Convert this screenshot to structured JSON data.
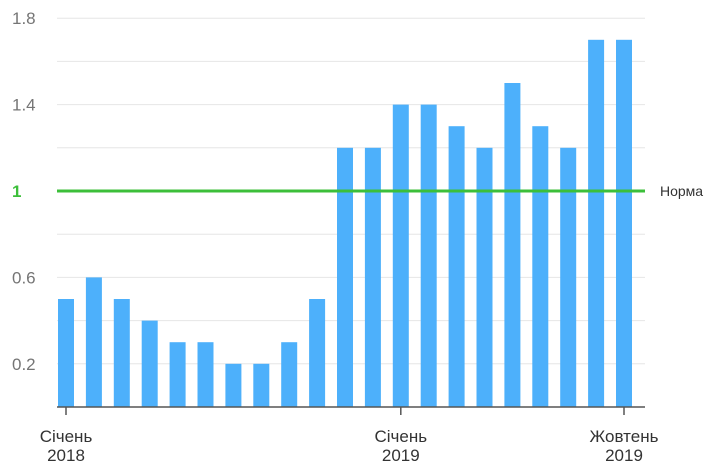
{
  "chart_data": {
    "type": "bar",
    "title": "",
    "xlabel": "",
    "ylabel": "",
    "ylim": [
      0,
      1.8
    ],
    "grid": true,
    "y_ticks": [
      "0.2",
      "0.6",
      "1",
      "1.4",
      "1.8"
    ],
    "bar_color": "#4db0fb",
    "values": [
      0.5,
      0.6,
      0.5,
      0.4,
      0.3,
      0.3,
      0.2,
      0.2,
      0.3,
      0.5,
      1.2,
      1.2,
      1.4,
      1.4,
      1.3,
      1.2,
      1.5,
      1.3,
      1.2,
      1.7,
      1.7
    ],
    "x_tick_labels": [
      {
        "index": 0,
        "line1": "Січень",
        "line2": "2018"
      },
      {
        "index": 12,
        "line1": "Січень",
        "line2": "2019"
      },
      {
        "index": 20,
        "line1": "Жовтень",
        "line2": "2019"
      }
    ],
    "reference_line": {
      "value": 1,
      "label": "Норма",
      "color": "#3cbf3a",
      "tick_label": "1"
    }
  }
}
